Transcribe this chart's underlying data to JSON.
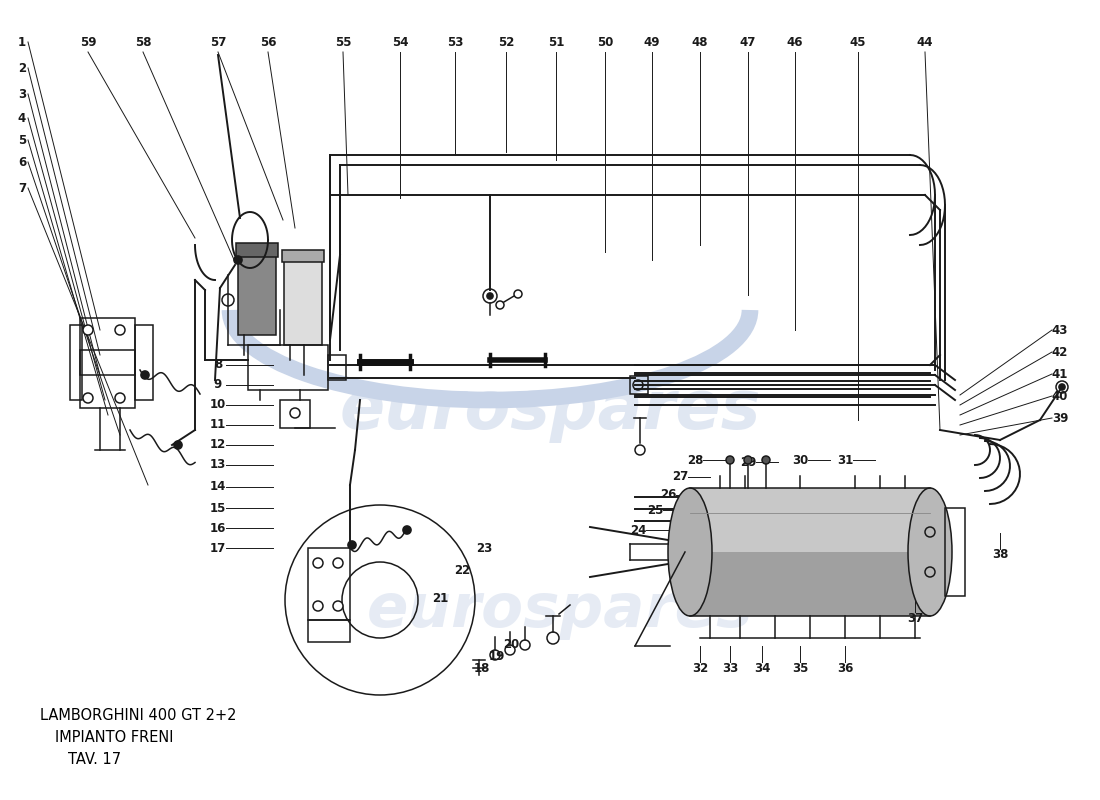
{
  "title": "LAMBORGHINI 400 GT 2+2",
  "subtitle": "IMPIANTO FRENI",
  "table_ref": "TAV. 17",
  "bg_color": "#ffffff",
  "lc": "#1a1a1a",
  "wm_color": "#c8d4e8",
  "fig_width": 11.0,
  "fig_height": 8.0,
  "dpi": 100
}
